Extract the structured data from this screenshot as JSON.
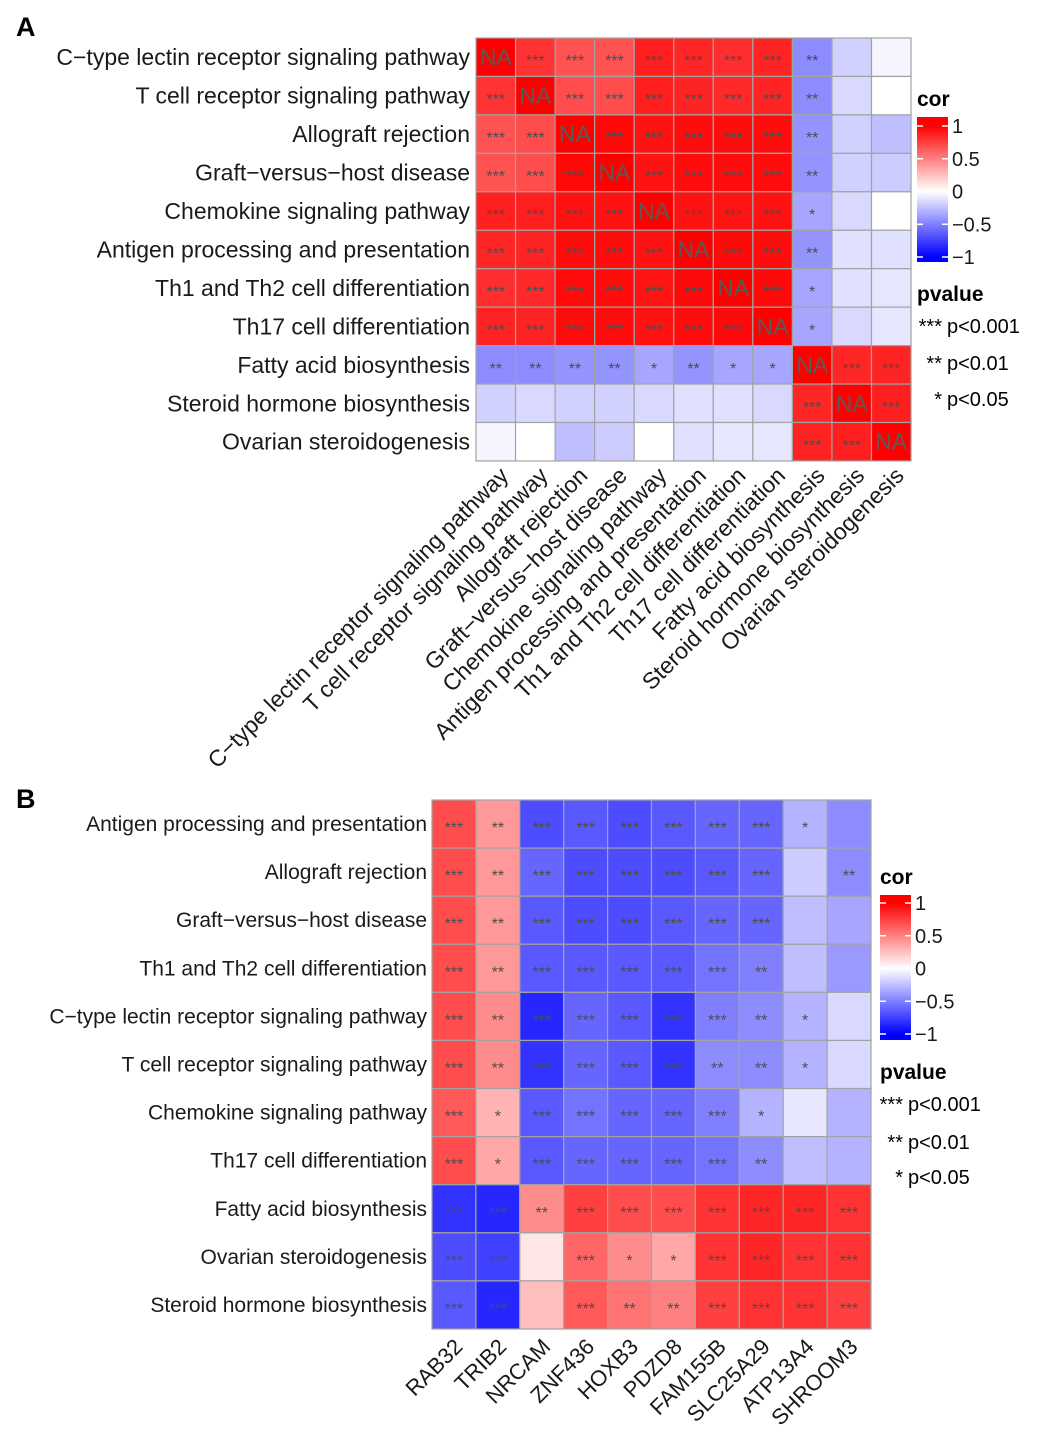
{
  "chart_data": [
    {
      "panel_label": "A",
      "type": "heatmap",
      "legend_position": "right",
      "rows": [
        "C−type lectin receptor signaling pathway",
        "T cell receptor signaling pathway",
        "Allograft rejection",
        "Graft−versus−host disease",
        "Chemokine signaling pathway",
        "Antigen processing and presentation",
        "Th1 and Th2 cell differentiation",
        "Th17 cell differentiation",
        "Fatty acid biosynthesis",
        "Steroid hormone biosynthesis",
        "Ovarian steroidogenesis"
      ],
      "columns": [
        "C−type lectin receptor signaling pathway",
        "T cell receptor signaling pathway",
        "Allograft rejection",
        "Graft−versus−host disease",
        "Chemokine signaling pathway",
        "Antigen processing and presentation",
        "Th1 and Th2 cell differentiation",
        "Th17 cell differentiation",
        "Fatty acid biosynthesis",
        "Steroid hormone biosynthesis",
        "Ovarian steroidogenesis"
      ],
      "values": [
        [
          1,
          0.8,
          0.68,
          0.68,
          0.88,
          0.85,
          0.82,
          0.86,
          -0.45,
          -0.18,
          -0.04
        ],
        [
          0.8,
          1,
          0.7,
          0.7,
          0.88,
          0.86,
          0.84,
          0.86,
          -0.45,
          -0.15,
          0.0
        ],
        [
          0.68,
          0.7,
          1,
          0.97,
          0.93,
          0.95,
          0.95,
          0.95,
          -0.42,
          -0.18,
          -0.25
        ],
        [
          0.68,
          0.7,
          0.97,
          1,
          0.93,
          0.95,
          0.95,
          0.95,
          -0.42,
          -0.18,
          -0.2
        ],
        [
          0.88,
          0.88,
          0.93,
          0.93,
          1,
          0.93,
          0.92,
          0.93,
          -0.35,
          -0.15,
          0.0
        ],
        [
          0.85,
          0.86,
          0.95,
          0.95,
          0.93,
          1,
          0.96,
          0.95,
          -0.42,
          -0.12,
          -0.12
        ],
        [
          0.82,
          0.84,
          0.95,
          0.95,
          0.92,
          0.96,
          1,
          0.96,
          -0.35,
          -0.12,
          -0.1
        ],
        [
          0.86,
          0.86,
          0.95,
          0.95,
          0.93,
          0.95,
          0.96,
          1,
          -0.35,
          -0.15,
          -0.1
        ],
        [
          -0.45,
          -0.45,
          -0.42,
          -0.42,
          -0.35,
          -0.42,
          -0.35,
          -0.35,
          1,
          0.85,
          0.86
        ],
        [
          -0.18,
          -0.15,
          -0.18,
          -0.18,
          -0.15,
          -0.12,
          -0.12,
          -0.15,
          0.85,
          1,
          0.88
        ],
        [
          -0.04,
          0.0,
          -0.25,
          -0.2,
          0.0,
          -0.12,
          -0.1,
          -0.1,
          0.86,
          0.88,
          1
        ]
      ],
      "annotations": [
        [
          "NA",
          "***",
          "***",
          "***",
          "***",
          "***",
          "***",
          "***",
          "**",
          "",
          ""
        ],
        [
          "***",
          "NA",
          "***",
          "***",
          "***",
          "***",
          "***",
          "***",
          "**",
          "",
          ""
        ],
        [
          "***",
          "***",
          "NA",
          "***",
          "***",
          "***",
          "***",
          "***",
          "**",
          "",
          ""
        ],
        [
          "***",
          "***",
          "***",
          "NA",
          "***",
          "***",
          "***",
          "***",
          "**",
          "",
          ""
        ],
        [
          "***",
          "***",
          "***",
          "***",
          "NA",
          "***",
          "***",
          "***",
          "*",
          "",
          ""
        ],
        [
          "***",
          "***",
          "***",
          "***",
          "***",
          "NA",
          "***",
          "***",
          "**",
          "",
          ""
        ],
        [
          "***",
          "***",
          "***",
          "***",
          "***",
          "***",
          "NA",
          "***",
          "*",
          "",
          ""
        ],
        [
          "***",
          "***",
          "***",
          "***",
          "***",
          "***",
          "***",
          "NA",
          "*",
          "",
          ""
        ],
        [
          "**",
          "**",
          "**",
          "**",
          "*",
          "**",
          "*",
          "*",
          "NA",
          "***",
          "***"
        ],
        [
          "",
          "",
          "",
          "",
          "",
          "",
          "",
          "",
          "***",
          "NA",
          "***"
        ],
        [
          "",
          "",
          "",
          "",
          "",
          "",
          "",
          "",
          "***",
          "***",
          "NA"
        ]
      ],
      "color_scale": {
        "min": -1,
        "mid": 0,
        "max": 1,
        "low": "#0000FF",
        "mid_color": "#FFFFFF",
        "high": "#FF0000"
      },
      "legend": {
        "title": "cor",
        "tick_values": [
          1,
          0.5,
          0,
          -0.5,
          -1
        ],
        "tick_labels": [
          "1",
          "0.5",
          "0",
          "−0.5",
          "−1"
        ]
      },
      "pvalue_legend": {
        "title": "pvalue",
        "entries": [
          {
            "symbol": "***",
            "label": "p<0.001"
          },
          {
            "symbol": "**",
            "label": "p<0.01"
          },
          {
            "symbol": "*",
            "label": "p<0.05"
          }
        ]
      }
    },
    {
      "panel_label": "B",
      "type": "heatmap",
      "legend_position": "right",
      "rows": [
        "Antigen processing and presentation",
        "Allograft rejection",
        "Graft−versus−host disease",
        "Th1 and Th2 cell differentiation",
        "C−type lectin receptor signaling pathway",
        "T cell receptor signaling pathway",
        "Chemokine signaling pathway",
        "Th17 cell differentiation",
        "Fatty acid biosynthesis",
        "Ovarian steroidogenesis",
        "Steroid hormone biosynthesis"
      ],
      "columns": [
        "RAB32",
        "TRIB2",
        "NRCAM",
        "ZNF436",
        "HOXB3",
        "PDZD8",
        "FAM155B",
        "SLC25A29",
        "ATP13A4",
        "SHROOM3"
      ],
      "values": [
        [
          0.7,
          0.4,
          -0.7,
          -0.65,
          -0.7,
          -0.65,
          -0.6,
          -0.6,
          -0.3,
          -0.45
        ],
        [
          0.7,
          0.4,
          -0.6,
          -0.7,
          -0.7,
          -0.7,
          -0.65,
          -0.6,
          -0.2,
          -0.45
        ],
        [
          0.7,
          0.4,
          -0.65,
          -0.7,
          -0.7,
          -0.65,
          -0.6,
          -0.6,
          -0.25,
          -0.35
        ],
        [
          0.7,
          0.4,
          -0.65,
          -0.65,
          -0.65,
          -0.65,
          -0.55,
          -0.5,
          -0.25,
          -0.4
        ],
        [
          0.7,
          0.45,
          -0.85,
          -0.6,
          -0.65,
          -0.8,
          -0.5,
          -0.45,
          -0.3,
          -0.15
        ],
        [
          0.7,
          0.45,
          -0.8,
          -0.6,
          -0.65,
          -0.8,
          -0.45,
          -0.45,
          -0.3,
          -0.15
        ],
        [
          0.65,
          0.3,
          -0.65,
          -0.55,
          -0.6,
          -0.6,
          -0.5,
          -0.3,
          -0.1,
          -0.3
        ],
        [
          0.7,
          0.35,
          -0.65,
          -0.6,
          -0.6,
          -0.6,
          -0.55,
          -0.45,
          -0.25,
          -0.3
        ],
        [
          -0.8,
          -0.85,
          0.45,
          0.75,
          0.7,
          0.7,
          0.8,
          0.85,
          0.85,
          0.8
        ],
        [
          -0.7,
          -0.75,
          0.1,
          0.6,
          0.45,
          0.35,
          0.8,
          0.85,
          0.8,
          0.8
        ],
        [
          -0.65,
          -0.85,
          0.25,
          0.65,
          0.55,
          0.5,
          0.75,
          0.8,
          0.8,
          0.75
        ]
      ],
      "annotations": [
        [
          "***",
          "**",
          "***",
          "***",
          "***",
          "***",
          "***",
          "***",
          "*",
          ""
        ],
        [
          "***",
          "**",
          "***",
          "***",
          "***",
          "***",
          "***",
          "***",
          "",
          "**"
        ],
        [
          "***",
          "**",
          "***",
          "***",
          "***",
          "***",
          "***",
          "***",
          "",
          ""
        ],
        [
          "***",
          "**",
          "***",
          "***",
          "***",
          "***",
          "***",
          "**",
          "",
          ""
        ],
        [
          "***",
          "**",
          "***",
          "***",
          "***",
          "***",
          "***",
          "**",
          "*",
          ""
        ],
        [
          "***",
          "**",
          "***",
          "***",
          "***",
          "***",
          "**",
          "**",
          "*",
          ""
        ],
        [
          "***",
          "*",
          "***",
          "***",
          "***",
          "***",
          "***",
          "*",
          "",
          ""
        ],
        [
          "***",
          "*",
          "***",
          "***",
          "***",
          "***",
          "***",
          "**",
          "",
          ""
        ],
        [
          "***",
          "***",
          "**",
          "***",
          "***",
          "***",
          "***",
          "***",
          "***",
          "***"
        ],
        [
          "***",
          "***",
          "",
          "***",
          "*",
          "*",
          "***",
          "***",
          "***",
          "***"
        ],
        [
          "***",
          "***",
          "",
          "***",
          "**",
          "**",
          "***",
          "***",
          "***",
          "***"
        ]
      ],
      "color_scale": {
        "min": -1,
        "mid": 0,
        "max": 1,
        "low": "#0000FF",
        "mid_color": "#FFFFFF",
        "high": "#FF0000"
      },
      "legend": {
        "title": "cor",
        "tick_values": [
          1,
          0.5,
          0,
          -0.5,
          -1
        ],
        "tick_labels": [
          "1",
          "0.5",
          "0",
          "−0.5",
          "−1"
        ]
      },
      "pvalue_legend": {
        "title": "pvalue",
        "entries": [
          {
            "symbol": "***",
            "label": "p<0.001"
          },
          {
            "symbol": "**",
            "label": "p<0.01"
          },
          {
            "symbol": "*",
            "label": "p<0.05"
          }
        ]
      }
    }
  ]
}
